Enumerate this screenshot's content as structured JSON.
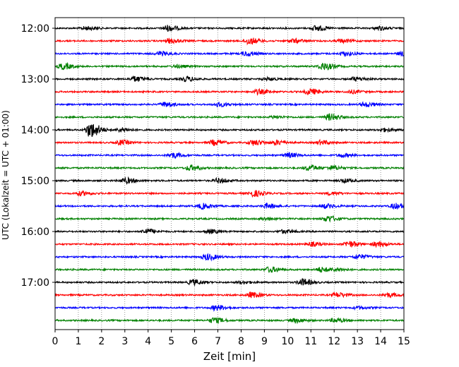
{
  "chart_data": {
    "type": "line",
    "title": "",
    "xlabel": "Zeit  [min]",
    "ylabel": "UTC (Lokalzeit = UTC + 01:00)",
    "xlim": [
      0,
      15
    ],
    "x_ticks": [
      0,
      1,
      2,
      3,
      4,
      5,
      6,
      7,
      8,
      9,
      10,
      11,
      12,
      13,
      14,
      15
    ],
    "x_tick_labels": [
      "0",
      "1",
      "2",
      "3",
      "4",
      "5",
      "6",
      "7",
      "8",
      "9",
      "10",
      "11",
      "12",
      "13",
      "14",
      "15"
    ],
    "y_tick_labels": [
      "12:00",
      "13:00",
      "14:00",
      "15:00",
      "16:00",
      "17:00"
    ],
    "grid": "vertical dotted",
    "trace_interval_min": 15,
    "colors": [
      "#000000",
      "#ff0000",
      "#0000ff",
      "#008000"
    ],
    "traces": [
      {
        "start": "12:00",
        "color": "#000000",
        "bursts": [
          {
            "t": 4.8,
            "amp": 0.45
          },
          {
            "t": 11.2,
            "amp": 0.4
          },
          {
            "t": 1.3,
            "amp": 0.25
          },
          {
            "t": 13.9,
            "amp": 0.25
          }
        ]
      },
      {
        "start": "12:15",
        "color": "#ff0000",
        "bursts": [
          {
            "t": 4.9,
            "amp": 0.35
          },
          {
            "t": 8.3,
            "amp": 0.5
          },
          {
            "t": 10.2,
            "amp": 0.3
          },
          {
            "t": 12.3,
            "amp": 0.25
          }
        ]
      },
      {
        "start": "12:30",
        "color": "#0000ff",
        "bursts": [
          {
            "t": 4.5,
            "amp": 0.3
          },
          {
            "t": 8.2,
            "amp": 0.35
          },
          {
            "t": 12.4,
            "amp": 0.3
          },
          {
            "t": 14.9,
            "amp": 0.3
          }
        ]
      },
      {
        "start": "12:45",
        "color": "#008000",
        "bursts": [
          {
            "t": 0.3,
            "amp": 0.45
          },
          {
            "t": 11.5,
            "amp": 0.55
          },
          {
            "t": 5.2,
            "amp": 0.2
          }
        ]
      },
      {
        "start": "13:00",
        "color": "#000000",
        "bursts": [
          {
            "t": 3.4,
            "amp": 0.4
          },
          {
            "t": 5.6,
            "amp": 0.35
          },
          {
            "t": 12.9,
            "amp": 0.3
          },
          {
            "t": 9.1,
            "amp": 0.2
          }
        ]
      },
      {
        "start": "13:15",
        "color": "#ff0000",
        "bursts": [
          {
            "t": 8.7,
            "amp": 0.35
          },
          {
            "t": 10.9,
            "amp": 0.45
          },
          {
            "t": 12.7,
            "amp": 0.25
          }
        ]
      },
      {
        "start": "13:30",
        "color": "#0000ff",
        "bursts": [
          {
            "t": 4.7,
            "amp": 0.35
          },
          {
            "t": 7.0,
            "amp": 0.3
          },
          {
            "t": 13.3,
            "amp": 0.35
          }
        ]
      },
      {
        "start": "13:45",
        "color": "#008000",
        "bursts": [
          {
            "t": 11.8,
            "amp": 0.5
          },
          {
            "t": 9.4,
            "amp": 0.2
          }
        ]
      },
      {
        "start": "14:00",
        "color": "#000000",
        "bursts": [
          {
            "t": 1.5,
            "amp": 1.15
          },
          {
            "t": 2.8,
            "amp": 0.3
          },
          {
            "t": 14.1,
            "amp": 0.25
          }
        ]
      },
      {
        "start": "14:15",
        "color": "#ff0000",
        "bursts": [
          {
            "t": 2.8,
            "amp": 0.35
          },
          {
            "t": 6.8,
            "amp": 0.4
          },
          {
            "t": 8.5,
            "amp": 0.4
          },
          {
            "t": 9.5,
            "amp": 0.35
          },
          {
            "t": 11.4,
            "amp": 0.3
          }
        ]
      },
      {
        "start": "14:30",
        "color": "#0000ff",
        "bursts": [
          {
            "t": 5.0,
            "amp": 0.4
          },
          {
            "t": 10.0,
            "amp": 0.35
          },
          {
            "t": 12.3,
            "amp": 0.25
          }
        ]
      },
      {
        "start": "14:45",
        "color": "#008000",
        "bursts": [
          {
            "t": 5.8,
            "amp": 0.4
          },
          {
            "t": 10.9,
            "amp": 0.4
          },
          {
            "t": 11.9,
            "amp": 0.3
          }
        ]
      },
      {
        "start": "15:00",
        "color": "#000000",
        "bursts": [
          {
            "t": 3.0,
            "amp": 0.4
          },
          {
            "t": 7.0,
            "amp": 0.35
          },
          {
            "t": 12.4,
            "amp": 0.25
          }
        ]
      },
      {
        "start": "15:15",
        "color": "#ff0000",
        "bursts": [
          {
            "t": 1.1,
            "amp": 0.3
          },
          {
            "t": 8.5,
            "amp": 0.45
          },
          {
            "t": 11.8,
            "amp": 0.2
          }
        ]
      },
      {
        "start": "15:30",
        "color": "#0000ff",
        "bursts": [
          {
            "t": 6.3,
            "amp": 0.4
          },
          {
            "t": 9.1,
            "amp": 0.35
          },
          {
            "t": 11.6,
            "amp": 0.3
          },
          {
            "t": 14.6,
            "amp": 0.4
          }
        ]
      },
      {
        "start": "15:45",
        "color": "#008000",
        "bursts": [
          {
            "t": 11.7,
            "amp": 0.45
          },
          {
            "t": 9.0,
            "amp": 0.2
          }
        ]
      },
      {
        "start": "16:00",
        "color": "#000000",
        "bursts": [
          {
            "t": 3.9,
            "amp": 0.4
          },
          {
            "t": 6.6,
            "amp": 0.3
          },
          {
            "t": 9.8,
            "amp": 0.25
          }
        ]
      },
      {
        "start": "16:15",
        "color": "#ff0000",
        "bursts": [
          {
            "t": 11.0,
            "amp": 0.3
          },
          {
            "t": 12.6,
            "amp": 0.45
          },
          {
            "t": 13.8,
            "amp": 0.35
          }
        ]
      },
      {
        "start": "16:30",
        "color": "#0000ff",
        "bursts": [
          {
            "t": 6.5,
            "amp": 0.45
          },
          {
            "t": 13.0,
            "amp": 0.35
          }
        ]
      },
      {
        "start": "16:45",
        "color": "#008000",
        "bursts": [
          {
            "t": 9.2,
            "amp": 0.4
          },
          {
            "t": 11.4,
            "amp": 0.35
          },
          {
            "t": 12.1,
            "amp": 0.2
          }
        ]
      },
      {
        "start": "17:00",
        "color": "#000000",
        "bursts": [
          {
            "t": 5.9,
            "amp": 0.4
          },
          {
            "t": 10.6,
            "amp": 0.5
          },
          {
            "t": 8.0,
            "amp": 0.2
          }
        ]
      },
      {
        "start": "17:15",
        "color": "#ff0000",
        "bursts": [
          {
            "t": 8.4,
            "amp": 0.4
          },
          {
            "t": 12.1,
            "amp": 0.35
          },
          {
            "t": 14.3,
            "amp": 0.3
          }
        ]
      },
      {
        "start": "17:30",
        "color": "#0000ff",
        "bursts": [
          {
            "t": 6.9,
            "amp": 0.4
          },
          {
            "t": 13.0,
            "amp": 0.2
          }
        ]
      },
      {
        "start": "17:45",
        "color": "#008000",
        "bursts": [
          {
            "t": 6.8,
            "amp": 0.4
          },
          {
            "t": 10.3,
            "amp": 0.3
          },
          {
            "t": 12.0,
            "amp": 0.3
          }
        ]
      }
    ]
  }
}
